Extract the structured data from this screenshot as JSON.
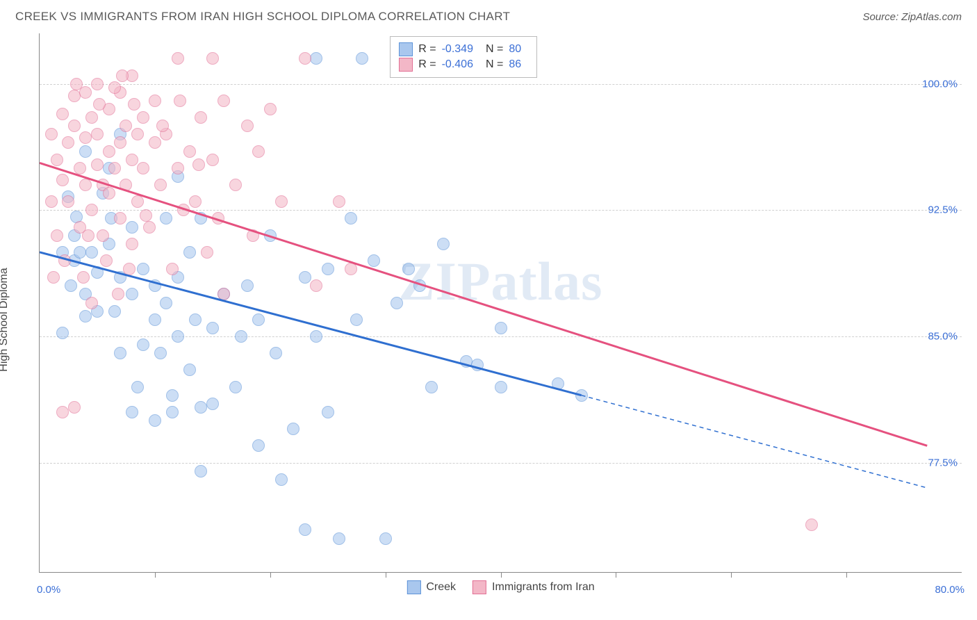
{
  "header": {
    "title": "CREEK VS IMMIGRANTS FROM IRAN HIGH SCHOOL DIPLOMA CORRELATION CHART",
    "source": "Source: ZipAtlas.com"
  },
  "chart": {
    "type": "scatter",
    "watermark": "ZIPatlas",
    "yaxis_title": "High School Diploma",
    "xlim": [
      0,
      80
    ],
    "ylim": [
      71,
      103
    ],
    "xlabel_min": "0.0%",
    "xlabel_max": "80.0%",
    "xticks": [
      10,
      20,
      30,
      40,
      50,
      60,
      70
    ],
    "yticks": [
      {
        "v": 77.5,
        "label": "77.5%"
      },
      {
        "v": 85.0,
        "label": "85.0%"
      },
      {
        "v": 92.5,
        "label": "92.5%"
      },
      {
        "v": 100.0,
        "label": "100.0%"
      }
    ],
    "grid_color": "#d0d0d0",
    "series": [
      {
        "key": "creek",
        "name": "Creek",
        "fill": "#a9c7ee",
        "stroke": "#5d93d8",
        "line_color": "#2f6fd0",
        "r": -0.349,
        "n": 80,
        "regression": {
          "x1": 0,
          "y1": 90.0,
          "x2_solid": 47,
          "y2_solid": 81.5,
          "x2": 77,
          "y2": 76.0
        },
        "points": [
          [
            2,
            90
          ],
          [
            3,
            89.5
          ],
          [
            3.5,
            90
          ],
          [
            4,
            87.5
          ],
          [
            4,
            86.2
          ],
          [
            2,
            85.2
          ],
          [
            2.5,
            93.3
          ],
          [
            3,
            91
          ],
          [
            4.5,
            90
          ],
          [
            5,
            88.8
          ],
          [
            5,
            86.5
          ],
          [
            6,
            90.5
          ],
          [
            6.5,
            86.5
          ],
          [
            7,
            88.5
          ],
          [
            7,
            84
          ],
          [
            8,
            91.5
          ],
          [
            8,
            87.5
          ],
          [
            8.5,
            82
          ],
          [
            9,
            89
          ],
          [
            9,
            84.5
          ],
          [
            10,
            88
          ],
          [
            10,
            86
          ],
          [
            10.5,
            84
          ],
          [
            11,
            92
          ],
          [
            11,
            87
          ],
          [
            11.5,
            81.5
          ],
          [
            12,
            94.5
          ],
          [
            12,
            88.5
          ],
          [
            12,
            85
          ],
          [
            13,
            90
          ],
          [
            13,
            83
          ],
          [
            13.5,
            86
          ],
          [
            14,
            92
          ],
          [
            14,
            77
          ],
          [
            15,
            85.5
          ],
          [
            15,
            81
          ],
          [
            16,
            87.5
          ],
          [
            17,
            82
          ],
          [
            17.5,
            85
          ],
          [
            18,
            88
          ],
          [
            19,
            86
          ],
          [
            19,
            78.5
          ],
          [
            20,
            91
          ],
          [
            20.5,
            84
          ],
          [
            21,
            76.5
          ],
          [
            22,
            79.5
          ],
          [
            23,
            88.5
          ],
          [
            23,
            73.5
          ],
          [
            24,
            85
          ],
          [
            24,
            101.5
          ],
          [
            25,
            89
          ],
          [
            25,
            80.5
          ],
          [
            26,
            73
          ],
          [
            27,
            92
          ],
          [
            27.5,
            86
          ],
          [
            28,
            101.5
          ],
          [
            29,
            89.5
          ],
          [
            30,
            73
          ],
          [
            31,
            87
          ],
          [
            32,
            89
          ],
          [
            33,
            88
          ],
          [
            34,
            82
          ],
          [
            35,
            90.5
          ],
          [
            37,
            83.5
          ],
          [
            38,
            83.3
          ],
          [
            40,
            85.5
          ],
          [
            40,
            82
          ],
          [
            45,
            82.2
          ],
          [
            47,
            81.5
          ],
          [
            4,
            96
          ],
          [
            6,
            95
          ],
          [
            7,
            97
          ],
          [
            8,
            80.5
          ],
          [
            10,
            80
          ],
          [
            11.5,
            80.5
          ],
          [
            14,
            80.8
          ],
          [
            5.5,
            93.5
          ],
          [
            3.2,
            92.1
          ],
          [
            6.2,
            92
          ],
          [
            2.7,
            88
          ]
        ]
      },
      {
        "key": "iran",
        "name": "Immigrants from Iran",
        "fill": "#f3b7c7",
        "stroke": "#e27095",
        "line_color": "#e5517f",
        "r": -0.406,
        "n": 86,
        "regression": {
          "x1": 0,
          "y1": 95.3,
          "x2_solid": 77,
          "y2_solid": 78.5,
          "x2": 77,
          "y2": 78.5
        },
        "points": [
          [
            1,
            97
          ],
          [
            1.5,
            95.5
          ],
          [
            2,
            98.2
          ],
          [
            2,
            94.3
          ],
          [
            2.5,
            96.5
          ],
          [
            2.5,
            93
          ],
          [
            3,
            97.5
          ],
          [
            3,
            99.3
          ],
          [
            3.5,
            95
          ],
          [
            3.5,
            91.5
          ],
          [
            4,
            99.5
          ],
          [
            4,
            96.8
          ],
          [
            4,
            94
          ],
          [
            4.5,
            98
          ],
          [
            4.5,
            92.5
          ],
          [
            5,
            100
          ],
          [
            5,
            97
          ],
          [
            5,
            95.2
          ],
          [
            5.5,
            94
          ],
          [
            5.5,
            91
          ],
          [
            6,
            98.5
          ],
          [
            6,
            96
          ],
          [
            6,
            93.5
          ],
          [
            6.5,
            95
          ],
          [
            7,
            99.5
          ],
          [
            7,
            96.5
          ],
          [
            7,
            92
          ],
          [
            7.5,
            97.5
          ],
          [
            7.5,
            94
          ],
          [
            8,
            100.5
          ],
          [
            8,
            95.5
          ],
          [
            8,
            90.5
          ],
          [
            8.5,
            97
          ],
          [
            8.5,
            93
          ],
          [
            9,
            98
          ],
          [
            9,
            95
          ],
          [
            9.5,
            91.5
          ],
          [
            10,
            99
          ],
          [
            10,
            96.5
          ],
          [
            10.5,
            94
          ],
          [
            11,
            97
          ],
          [
            11.5,
            89
          ],
          [
            12,
            101.5
          ],
          [
            12,
            95
          ],
          [
            12.5,
            92.5
          ],
          [
            13,
            96
          ],
          [
            13.5,
            93
          ],
          [
            14,
            98
          ],
          [
            14.5,
            90
          ],
          [
            15,
            95.5
          ],
          [
            15.5,
            92
          ],
          [
            16,
            99
          ],
          [
            16,
            87.5
          ],
          [
            17,
            94
          ],
          [
            18,
            97.5
          ],
          [
            18.5,
            91
          ],
          [
            19,
            96
          ],
          [
            20,
            98.5
          ],
          [
            21,
            93
          ],
          [
            23,
            101.5
          ],
          [
            24,
            88
          ],
          [
            26,
            93
          ],
          [
            27,
            89
          ],
          [
            2,
            80.5
          ],
          [
            3,
            80.8
          ],
          [
            4.5,
            87
          ],
          [
            1.5,
            91
          ],
          [
            1,
            93
          ],
          [
            67,
            73.8
          ],
          [
            6.5,
            99.8
          ],
          [
            7.2,
            100.5
          ],
          [
            3.2,
            100
          ],
          [
            5.2,
            98.8
          ],
          [
            8.2,
            98.8
          ],
          [
            4.2,
            91
          ],
          [
            12.2,
            99
          ],
          [
            10.7,
            97.5
          ],
          [
            13.8,
            95.2
          ],
          [
            5.8,
            89.5
          ],
          [
            6.8,
            87.5
          ],
          [
            3.8,
            88.5
          ],
          [
            2.2,
            89.5
          ],
          [
            1.2,
            88.5
          ],
          [
            7.8,
            89
          ],
          [
            9.2,
            92.2
          ],
          [
            15,
            101.5
          ]
        ]
      }
    ],
    "legend_top": {
      "r_label": "R =",
      "n_label": "N ="
    }
  }
}
